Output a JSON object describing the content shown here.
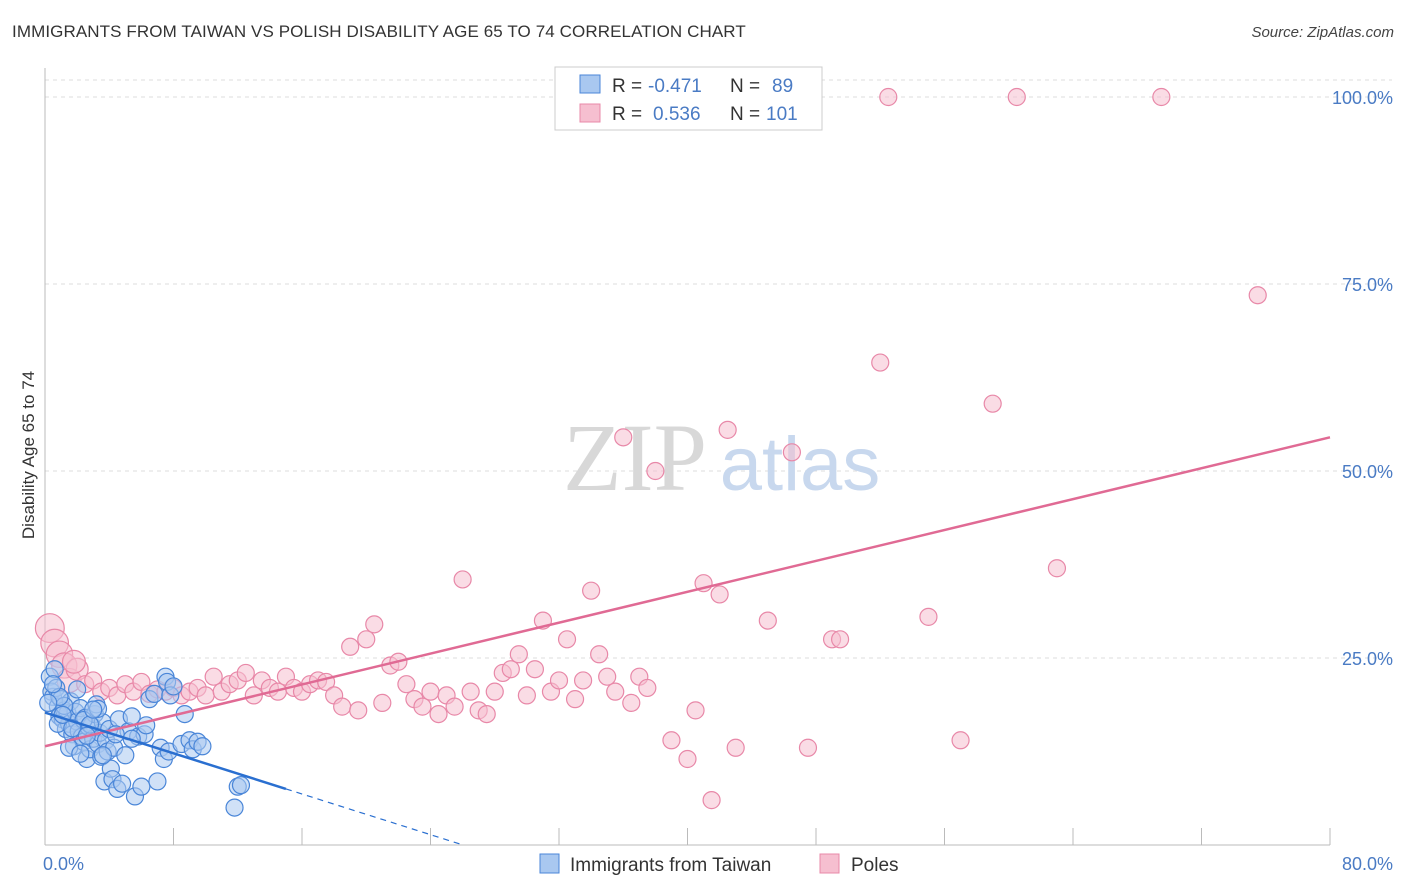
{
  "title": "IMMIGRANTS FROM TAIWAN VS POLISH DISABILITY AGE 65 TO 74 CORRELATION CHART",
  "source": "Source: ZipAtlas.com",
  "watermark": {
    "zip": "ZIP",
    "atlas": "atlas"
  },
  "colors": {
    "taiwan_fill": "#a9c8f0",
    "taiwan_stroke": "#4a86d8",
    "taiwan_line": "#2a6fd0",
    "poles_fill": "#f6bfd0",
    "poles_stroke": "#e888a8",
    "poles_line": "#e06a94",
    "tick_label": "#4a7bc4",
    "grid": "#dddddd"
  },
  "stats_legend": {
    "rows": [
      {
        "r_label": "R =",
        "r_value": "-0.471",
        "n_label": "N =",
        "n_value": "89",
        "series": "taiwan"
      },
      {
        "r_label": "R =",
        "r_value": "0.536",
        "n_label": "N =",
        "n_value": "101",
        "series": "poles"
      }
    ]
  },
  "chart_data": {
    "type": "scatter",
    "title": "IMMIGRANTS FROM TAIWAN VS POLISH DISABILITY AGE 65 TO 74 CORRELATION CHART",
    "xlabel": "",
    "ylabel": "Disability Age 65 to 74",
    "xlim": [
      0,
      80
    ],
    "ylim": [
      0,
      100
    ],
    "x_tick_labels": [
      {
        "value": 0,
        "label": "0.0%"
      },
      {
        "value": 80,
        "label": "80.0%"
      }
    ],
    "y_tick_labels": [
      {
        "value": 25,
        "label": "25.0%"
      },
      {
        "value": 50,
        "label": "50.0%"
      },
      {
        "value": 75,
        "label": "75.0%"
      },
      {
        "value": 100,
        "label": "100.0%"
      }
    ],
    "grid": true,
    "legend_position": "bottom-center",
    "series": [
      {
        "name": "Immigrants from Taiwan",
        "color": "#4a86d8",
        "trend": {
          "x0": 0,
          "y0": 17.7,
          "x1": 15,
          "y1": 7.5,
          "dashed_to_x": 26
        },
        "points": [
          [
            0.3,
            22.5
          ],
          [
            0.4,
            20.5
          ],
          [
            0.5,
            19.8
          ],
          [
            0.6,
            23.5
          ],
          [
            0.7,
            21.0
          ],
          [
            0.8,
            18.5
          ],
          [
            0.9,
            17.2
          ],
          [
            1.0,
            19.5
          ],
          [
            1.1,
            16.8
          ],
          [
            1.2,
            18.0
          ],
          [
            1.3,
            15.5
          ],
          [
            1.4,
            17.6
          ],
          [
            1.5,
            16.2
          ],
          [
            1.6,
            19.2
          ],
          [
            1.7,
            14.8
          ],
          [
            1.8,
            13.2
          ],
          [
            1.9,
            17.8
          ],
          [
            2.0,
            16.5
          ],
          [
            2.1,
            15.2
          ],
          [
            2.2,
            18.3
          ],
          [
            2.3,
            14.5
          ],
          [
            2.4,
            13.8
          ],
          [
            2.5,
            17.0
          ],
          [
            2.6,
            11.5
          ],
          [
            2.7,
            15.8
          ],
          [
            2.8,
            12.8
          ],
          [
            2.9,
            16.0
          ],
          [
            3.0,
            14.2
          ],
          [
            3.1,
            17.5
          ],
          [
            3.2,
            18.8
          ],
          [
            3.3,
            13.5
          ],
          [
            3.4,
            15.0
          ],
          [
            3.5,
            11.8
          ],
          [
            3.6,
            16.4
          ],
          [
            3.7,
            8.5
          ],
          [
            3.8,
            14.0
          ],
          [
            3.9,
            12.5
          ],
          [
            4.0,
            15.5
          ],
          [
            4.1,
            10.2
          ],
          [
            4.2,
            8.8
          ],
          [
            4.3,
            13.0
          ],
          [
            4.5,
            7.5
          ],
          [
            4.6,
            16.8
          ],
          [
            4.8,
            8.2
          ],
          [
            5.0,
            12.0
          ],
          [
            5.2,
            15.2
          ],
          [
            5.4,
            17.2
          ],
          [
            5.6,
            6.5
          ],
          [
            5.8,
            14.5
          ],
          [
            6.0,
            7.8
          ],
          [
            6.2,
            14.8
          ],
          [
            6.5,
            19.5
          ],
          [
            6.8,
            20.2
          ],
          [
            7.0,
            8.5
          ],
          [
            7.2,
            13.0
          ],
          [
            7.4,
            11.5
          ],
          [
            7.5,
            22.5
          ],
          [
            7.6,
            21.8
          ],
          [
            7.7,
            12.5
          ],
          [
            7.8,
            20.0
          ],
          [
            8.0,
            21.2
          ],
          [
            8.5,
            13.5
          ],
          [
            8.7,
            17.5
          ],
          [
            9.0,
            14.0
          ],
          [
            9.2,
            12.8
          ],
          [
            9.5,
            13.8
          ],
          [
            9.8,
            13.2
          ],
          [
            11.8,
            5.0
          ],
          [
            12.0,
            7.8
          ],
          [
            12.2,
            8.0
          ],
          [
            3.3,
            18.2
          ],
          [
            2.0,
            20.8
          ],
          [
            0.8,
            16.2
          ],
          [
            1.5,
            13.0
          ],
          [
            1.2,
            18.6
          ],
          [
            2.4,
            16.7
          ],
          [
            2.8,
            16.1
          ],
          [
            0.9,
            19.8
          ],
          [
            1.7,
            15.6
          ],
          [
            3.0,
            18.1
          ],
          [
            2.2,
            12.2
          ],
          [
            4.4,
            14.8
          ],
          [
            0.5,
            21.5
          ],
          [
            1.1,
            17.4
          ],
          [
            3.6,
            12.0
          ],
          [
            6.3,
            16.0
          ],
          [
            5.4,
            14.2
          ],
          [
            0.2,
            19.0
          ],
          [
            2.6,
            14.6
          ]
        ]
      },
      {
        "name": "Poles",
        "color": "#e888a8",
        "trend": {
          "x0": 0,
          "y0": 13.2,
          "x1": 80,
          "y1": 54.5
        },
        "points": [
          [
            0.3,
            29.0
          ],
          [
            0.6,
            27.0
          ],
          [
            0.9,
            25.5
          ],
          [
            1.2,
            24.0
          ],
          [
            1.5,
            22.0
          ],
          [
            2.0,
            23.5
          ],
          [
            2.5,
            21.5
          ],
          [
            3.0,
            22.0
          ],
          [
            3.5,
            20.5
          ],
          [
            4.0,
            21.0
          ],
          [
            4.5,
            20.0
          ],
          [
            5.0,
            21.5
          ],
          [
            5.5,
            20.5
          ],
          [
            6.0,
            21.8
          ],
          [
            6.5,
            20.2
          ],
          [
            7.0,
            20.8
          ],
          [
            7.5,
            20.5
          ],
          [
            8.0,
            21.0
          ],
          [
            8.5,
            20.0
          ],
          [
            9.0,
            20.5
          ],
          [
            9.5,
            21.0
          ],
          [
            10.0,
            20.0
          ],
          [
            10.5,
            22.5
          ],
          [
            11.0,
            20.5
          ],
          [
            11.5,
            21.5
          ],
          [
            12.0,
            22.0
          ],
          [
            12.5,
            23.0
          ],
          [
            13.0,
            20.0
          ],
          [
            13.5,
            22.0
          ],
          [
            14.0,
            21.0
          ],
          [
            14.5,
            20.5
          ],
          [
            15.0,
            22.5
          ],
          [
            15.5,
            21.0
          ],
          [
            16.0,
            20.5
          ],
          [
            16.5,
            21.5
          ],
          [
            17.0,
            22.0
          ],
          [
            17.5,
            21.8
          ],
          [
            18.0,
            20.0
          ],
          [
            18.5,
            18.5
          ],
          [
            19.0,
            26.5
          ],
          [
            19.5,
            18.0
          ],
          [
            20.0,
            27.5
          ],
          [
            20.5,
            29.5
          ],
          [
            21.0,
            19.0
          ],
          [
            21.5,
            24.0
          ],
          [
            22.0,
            24.5
          ],
          [
            22.5,
            21.5
          ],
          [
            23.0,
            19.5
          ],
          [
            23.5,
            18.5
          ],
          [
            24.0,
            20.5
          ],
          [
            24.5,
            17.5
          ],
          [
            25.0,
            20.0
          ],
          [
            25.5,
            18.5
          ],
          [
            26.0,
            35.5
          ],
          [
            26.5,
            20.5
          ],
          [
            27.0,
            18.0
          ],
          [
            27.5,
            17.5
          ],
          [
            28.0,
            20.5
          ],
          [
            28.5,
            23.0
          ],
          [
            29.0,
            23.5
          ],
          [
            29.5,
            25.5
          ],
          [
            30.0,
            20.0
          ],
          [
            30.5,
            23.5
          ],
          [
            31.0,
            30.0
          ],
          [
            31.5,
            20.5
          ],
          [
            32.0,
            22.0
          ],
          [
            32.5,
            27.5
          ],
          [
            33.0,
            19.5
          ],
          [
            33.5,
            22.0
          ],
          [
            34.0,
            34.0
          ],
          [
            34.5,
            25.5
          ],
          [
            35.0,
            22.5
          ],
          [
            35.5,
            20.5
          ],
          [
            36.0,
            54.5
          ],
          [
            36.5,
            19.0
          ],
          [
            37.0,
            22.5
          ],
          [
            37.5,
            21.0
          ],
          [
            38.0,
            50.0
          ],
          [
            39.0,
            14.0
          ],
          [
            40.0,
            11.5
          ],
          [
            40.5,
            18.0
          ],
          [
            41.0,
            35.0
          ],
          [
            41.5,
            6.0
          ],
          [
            42.0,
            33.5
          ],
          [
            42.5,
            55.5
          ],
          [
            43.0,
            13.0
          ],
          [
            45.0,
            30.0
          ],
          [
            46.5,
            52.5
          ],
          [
            47.5,
            13.0
          ],
          [
            49.0,
            27.5
          ],
          [
            49.5,
            27.5
          ],
          [
            52.0,
            64.5
          ],
          [
            55.0,
            30.5
          ],
          [
            57.0,
            14.0
          ],
          [
            59.0,
            59.0
          ],
          [
            63.0,
            37.0
          ],
          [
            52.5,
            100.0
          ],
          [
            60.5,
            100.0
          ],
          [
            69.5,
            100.0
          ],
          [
            75.5,
            73.5
          ],
          [
            1.8,
            24.5
          ]
        ]
      }
    ]
  },
  "bottom_legend": [
    {
      "label": "Immigrants from Taiwan",
      "series": "taiwan"
    },
    {
      "label": "Poles",
      "series": "poles"
    }
  ]
}
